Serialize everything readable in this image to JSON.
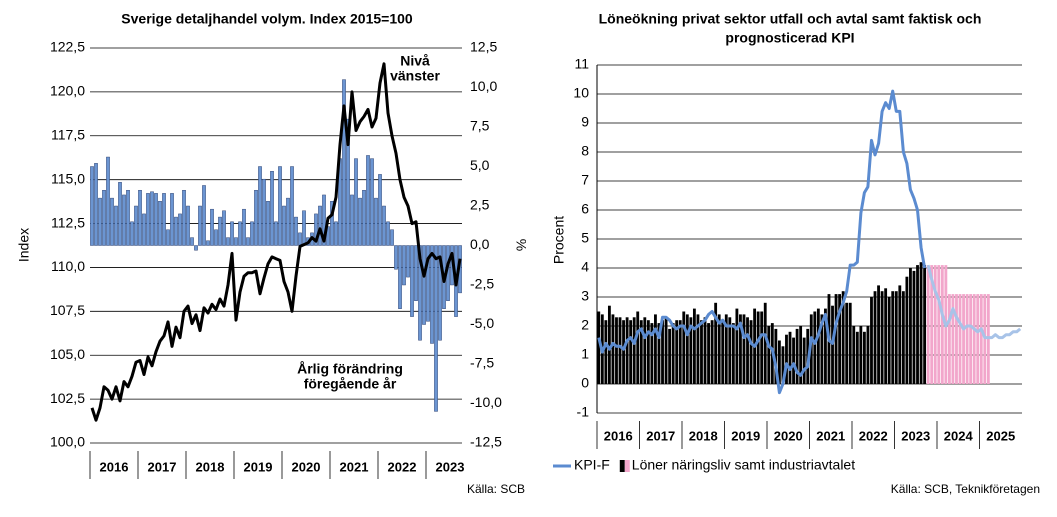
{
  "chart_data": [
    {
      "type": "combo",
      "title": [
        "Sverige detaljhandel volym. Index 2015=100"
      ],
      "ylabel": "Index",
      "y2label": "%",
      "source": "Källa: SCB",
      "annotations": [
        [
          "Nivå",
          "vänster"
        ],
        [
          "Årlig förändring",
          "föregående år"
        ]
      ],
      "grid": true,
      "categories": [
        null,
        null,
        null,
        null,
        null,
        null,
        "2016",
        null,
        null,
        null,
        null,
        null,
        null,
        null,
        null,
        null,
        null,
        null,
        "2017",
        null,
        null,
        null,
        null,
        null,
        null,
        null,
        null,
        null,
        null,
        null,
        "2018",
        null,
        null,
        null,
        null,
        null,
        null,
        null,
        null,
        null,
        null,
        null,
        "2019",
        null,
        null,
        null,
        null,
        null,
        null,
        null,
        null,
        null,
        null,
        null,
        "2020",
        null,
        null,
        null,
        null,
        null,
        null,
        null,
        null,
        null,
        null,
        null,
        "2021",
        null,
        null,
        null,
        null,
        null,
        null,
        null,
        null,
        null,
        null,
        null,
        "2022",
        null,
        null,
        null,
        null,
        null,
        null,
        null,
        null,
        null,
        null,
        null,
        "2023",
        null,
        null
      ],
      "ylim": [
        100,
        122.5
      ],
      "yticks": [
        {
          "value": 100,
          "label": "100,0"
        },
        {
          "value": 102.5,
          "label": "102,5"
        },
        {
          "value": 105,
          "label": "105,0"
        },
        {
          "value": 107.5,
          "label": "107,5"
        },
        {
          "value": 110,
          "label": "110,0"
        },
        {
          "value": 112.5,
          "label": "112,5"
        },
        {
          "value": 115,
          "label": "115,0"
        },
        {
          "value": 117.5,
          "label": "117,5"
        },
        {
          "value": 120,
          "label": "120,0"
        },
        {
          "value": 122.5,
          "label": "122,5"
        }
      ],
      "y2lim": [
        -12.5,
        12.5
      ],
      "y2ticks": [
        {
          "value": -12.5,
          "label": "-12,5"
        },
        {
          "value": -10,
          "label": "-10,0"
        },
        {
          "value": -7.5,
          "label": "-7,5"
        },
        {
          "value": -5,
          "label": "-5,0"
        },
        {
          "value": -2.5,
          "label": "-2,5"
        },
        {
          "value": 0,
          "label": "0,0"
        },
        {
          "value": 2.5,
          "label": "2,5"
        },
        {
          "value": 5,
          "label": "5,0"
        },
        {
          "value": 7.5,
          "label": "7,5"
        },
        {
          "value": 10,
          "label": "10,0"
        },
        {
          "value": 12.5,
          "label": "12,5"
        }
      ],
      "series": [
        {
          "kind": "bar",
          "axis": "y2",
          "color": "#6b95d2",
          "values": [
            5,
            5.2,
            3,
            3.5,
            5.6,
            3,
            2.5,
            4,
            3.2,
            3.5,
            1.5,
            2.5,
            3.5,
            2,
            3.3,
            3.4,
            3.3,
            2.8,
            3.3,
            1,
            3.3,
            1.8,
            2,
            3.5,
            2.5,
            0.5,
            -0.3,
            2.5,
            3.8,
            0.3,
            2.3,
            1,
            1.8,
            2.2,
            0.5,
            1.5,
            0.5,
            1.5,
            2.3,
            0.5,
            1.5,
            3.5,
            5,
            4.2,
            2.8,
            4.7,
            1.5,
            5,
            2.5,
            3,
            5,
            1.8,
            0.8,
            2.2,
            0.5,
            0.8,
            2,
            2.5,
            3.2,
            1.2,
            2.8,
            1.5,
            5.5,
            10.5,
            8,
            3.2,
            5.5,
            3,
            3.5,
            5.7,
            5.5,
            3,
            4.5,
            2.5,
            1.5,
            1,
            -1.5,
            -4,
            -2.5,
            -2,
            -4.5,
            -3.5,
            -6,
            -5,
            -4.8,
            -6.2,
            -10.5,
            -6,
            -4,
            -3.5,
            -2.5,
            -4.5,
            -3
          ]
        },
        {
          "kind": "line",
          "axis": "y",
          "color": "#000000",
          "values": [
            102,
            101.3,
            102,
            103.2,
            103,
            102.5,
            103.2,
            102.4,
            103.5,
            103.2,
            103.8,
            104.6,
            104.7,
            103.9,
            104.9,
            104.4,
            105.2,
            105.8,
            106.1,
            106.9,
            105.5,
            106.6,
            106,
            107.5,
            107.8,
            106.8,
            107.3,
            106.4,
            107.7,
            107.4,
            107.9,
            107.6,
            108.2,
            107.8,
            109,
            110.8,
            107,
            108.6,
            109.5,
            109.7,
            109.7,
            109.8,
            108.5,
            109.4,
            110.2,
            110.6,
            110.5,
            110.4,
            109.2,
            108.6,
            107.5,
            109.5,
            111.2,
            111.3,
            111.4,
            111.7,
            111.5,
            112.2,
            111.5,
            112.8,
            113,
            114,
            117,
            119.2,
            117,
            120,
            117.8,
            118.3,
            118.6,
            119,
            118,
            118.5,
            120.5,
            121.6,
            118.8,
            117.5,
            116.5,
            115,
            114,
            113.5,
            112.5,
            112.6,
            110.5,
            109.5,
            110.5,
            110.8,
            110.5,
            110.6,
            109.2,
            110.2,
            110.8,
            109,
            110.5
          ]
        }
      ]
    },
    {
      "type": "combo",
      "title": [
        "Löneökning privat sektor utfall och avtal samt faktisk och",
        "prognosticerad KPI"
      ],
      "ylabel": "Procent",
      "source": "Källa: SCB, Teknikföretagen",
      "grid": true,
      "legend": "bottom",
      "categories": [
        null,
        null,
        null,
        null,
        null,
        null,
        "2016",
        null,
        null,
        null,
        null,
        null,
        null,
        null,
        null,
        null,
        null,
        null,
        "2017",
        null,
        null,
        null,
        null,
        null,
        null,
        null,
        null,
        null,
        null,
        null,
        "2018",
        null,
        null,
        null,
        null,
        null,
        null,
        null,
        null,
        null,
        null,
        null,
        "2019",
        null,
        null,
        null,
        null,
        null,
        null,
        null,
        null,
        null,
        null,
        null,
        "2020",
        null,
        null,
        null,
        null,
        null,
        null,
        null,
        null,
        null,
        null,
        null,
        "2021",
        null,
        null,
        null,
        null,
        null,
        null,
        null,
        null,
        null,
        null,
        null,
        "2022",
        null,
        null,
        null,
        null,
        null,
        null,
        null,
        null,
        null,
        null,
        null,
        "2023",
        null,
        null,
        null,
        null,
        null,
        null,
        null,
        null,
        null,
        null,
        null,
        "2024",
        null,
        null,
        null,
        null,
        null,
        null,
        null,
        null,
        null,
        null,
        null,
        "2025",
        null,
        null,
        null,
        null,
        null
      ],
      "ylim": [
        -1,
        11
      ],
      "yticks": [
        -1,
        0,
        1,
        2,
        3,
        4,
        5,
        6,
        7,
        8,
        9,
        10,
        11
      ],
      "series": [
        {
          "name": "KPI-F",
          "kind": "line",
          "axis": "y",
          "color": "#5b8bd0",
          "forecast_color": "#a8c3e8",
          "values": [
            1.6,
            1.1,
            1.4,
            1.2,
            1.4,
            1.3,
            1.3,
            1.2,
            1.5,
            1.6,
            1.4,
            1.8,
            1.9,
            1.6,
            1.8,
            1.7,
            1.9,
            1.6,
            2.3,
            2.3,
            2.2,
            2,
            1.9,
            2,
            2,
            1.7,
            2,
            1.9,
            2,
            2.1,
            2.2,
            2.4,
            2.5,
            2.3,
            2.1,
            2.2,
            2,
            2,
            2,
            1.9,
            2.1,
            1.6,
            1.7,
            1.4,
            1.3,
            1.5,
            1.7,
            1.7,
            1.3,
            1.2,
            0.6,
            -0.3,
            0,
            0.7,
            0.5,
            0.7,
            0.4,
            0.3,
            0.5,
            0.6,
            1.6,
            1.4,
            1.7,
            2.1,
            2.4,
            1.5,
            1.4,
            2.1,
            2.5,
            2.8,
            3.2,
            4.1,
            4.1,
            4.2,
            5.9,
            6.6,
            6.8,
            8.4,
            7.9,
            8.3,
            9.4,
            9.7,
            9.5,
            10.1,
            9.4,
            9.4,
            8,
            7.6,
            6.7,
            6.4,
            6,
            4.7,
            4,
            null,
            null,
            null,
            null,
            null,
            null,
            null,
            null,
            null,
            null,
            null,
            null,
            null,
            null,
            null,
            null,
            null,
            null,
            null,
            null,
            null,
            null,
            null,
            null,
            null,
            null,
            null
          ],
          "forecast_values": [
            null,
            null,
            null,
            null,
            null,
            null,
            null,
            null,
            null,
            null,
            null,
            null,
            null,
            null,
            null,
            null,
            null,
            null,
            null,
            null,
            null,
            null,
            null,
            null,
            null,
            null,
            null,
            null,
            null,
            null,
            null,
            null,
            null,
            null,
            null,
            null,
            null,
            null,
            null,
            null,
            null,
            null,
            null,
            null,
            null,
            null,
            null,
            null,
            null,
            null,
            null,
            null,
            null,
            null,
            null,
            null,
            null,
            null,
            null,
            null,
            null,
            null,
            null,
            null,
            null,
            null,
            null,
            null,
            null,
            null,
            null,
            null,
            null,
            null,
            null,
            null,
            null,
            null,
            null,
            null,
            null,
            null,
            null,
            null,
            null,
            null,
            null,
            null,
            null,
            null,
            null,
            null,
            null,
            4.1,
            3.6,
            3.2,
            2.9,
            2.4,
            2,
            2.2,
            2.6,
            2.3,
            2.1,
            1.9,
            2,
            2,
            1.9,
            1.8,
            1.9,
            1.6,
            1.6,
            1.6,
            1.7,
            1.6,
            1.6,
            1.7,
            1.7,
            1.8,
            1.8,
            1.9
          ]
        },
        {
          "name": "Löner näringsliv samt industriavtalet",
          "kind": "bar",
          "axis": "y",
          "color": "#000000",
          "forecast_color": "#f2a6cb",
          "values": [
            2.5,
            2.4,
            2.2,
            2.7,
            2.4,
            2.3,
            2.3,
            2.2,
            2.3,
            2.2,
            2.3,
            2.5,
            2.2,
            2.3,
            2.2,
            2.1,
            2.4,
            2.1,
            2.2,
            2.3,
            1.9,
            2.1,
            2.2,
            2.2,
            2.5,
            2.4,
            2.3,
            2.6,
            2.4,
            2.2,
            2.3,
            2.1,
            2.2,
            2.8,
            2.4,
            2.2,
            2.4,
            2.3,
            2.1,
            2.6,
            2.4,
            2.4,
            2.3,
            2.2,
            2.6,
            2.5,
            2.5,
            2.8,
            2,
            2.1,
            1.9,
            1.5,
            1.3,
            1.7,
            1.8,
            1.6,
            1.9,
            2,
            1.6,
            1.9,
            2.4,
            2.5,
            2.6,
            2.4,
            2.6,
            3.1,
            2.7,
            3.1,
            3.1,
            3.2,
            2.8,
            2.8,
            2,
            1.8,
            2,
            1.8,
            2,
            3,
            3.2,
            3.4,
            3.2,
            3.3,
            3,
            3.2,
            3.2,
            3.4,
            3.2,
            3.7,
            4,
            3.9,
            4.1,
            4.2,
            4.1,
            null,
            null,
            null,
            null,
            null,
            null,
            null,
            null,
            null,
            null,
            null,
            null,
            null,
            null,
            null,
            null,
            null,
            null,
            null,
            null,
            null,
            null,
            null,
            null,
            null,
            null,
            null
          ],
          "forecast_values": [
            null,
            null,
            null,
            null,
            null,
            null,
            null,
            null,
            null,
            null,
            null,
            null,
            null,
            null,
            null,
            null,
            null,
            null,
            null,
            null,
            null,
            null,
            null,
            null,
            null,
            null,
            null,
            null,
            null,
            null,
            null,
            null,
            null,
            null,
            null,
            null,
            null,
            null,
            null,
            null,
            null,
            null,
            null,
            null,
            null,
            null,
            null,
            null,
            null,
            null,
            null,
            null,
            null,
            null,
            null,
            null,
            null,
            null,
            null,
            null,
            null,
            null,
            null,
            null,
            null,
            null,
            null,
            null,
            null,
            null,
            null,
            null,
            null,
            null,
            null,
            null,
            null,
            null,
            null,
            null,
            null,
            null,
            null,
            null,
            null,
            null,
            null,
            null,
            null,
            null,
            null,
            null,
            null,
            4.1,
            4.1,
            4.1,
            4.1,
            4.1,
            4.1,
            3.1,
            3.1,
            3.1,
            3.1,
            3.1,
            3.1,
            3.1,
            3.1,
            3.1,
            3.1,
            3.1,
            3.1,
            null,
            null,
            null,
            null,
            null,
            null,
            null,
            null,
            null
          ]
        }
      ]
    }
  ]
}
